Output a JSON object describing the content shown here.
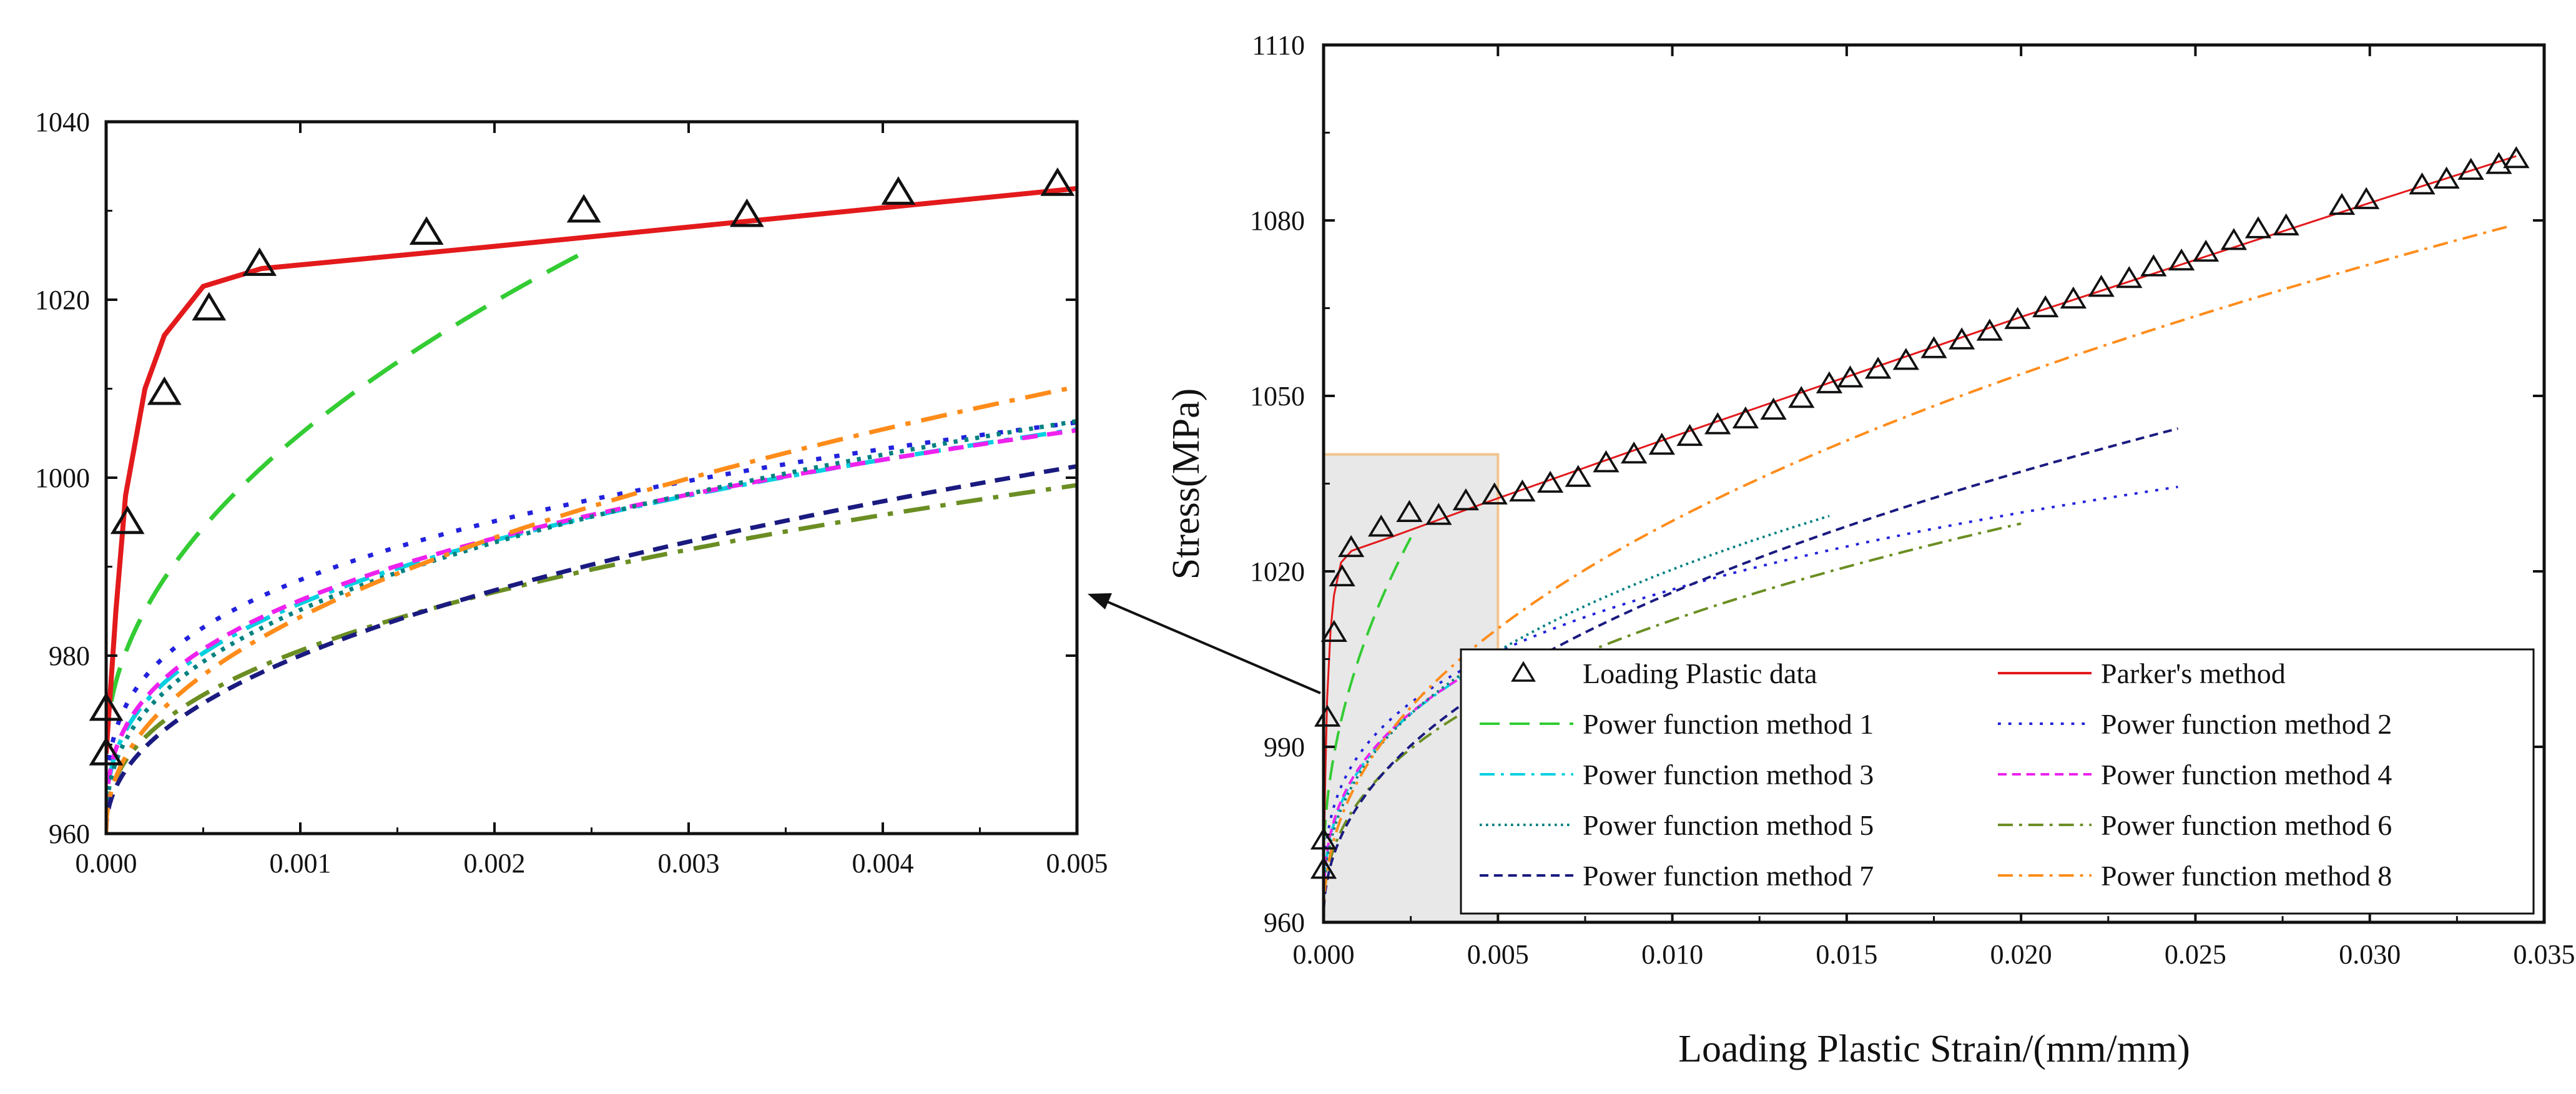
{
  "chart_data": [
    {
      "id": "inset",
      "type": "line",
      "title": "",
      "xlabel": "",
      "ylabel": "",
      "xlim": [
        0.0,
        0.005
      ],
      "ylim": [
        960,
        1040
      ],
      "xticks": [
        0.0,
        0.001,
        0.002,
        0.003,
        0.004,
        0.005
      ],
      "xtick_labels": [
        "0.000",
        "0.001",
        "0.002",
        "0.003",
        "0.004",
        "0.005"
      ],
      "yticks": [
        960,
        980,
        1000,
        1020,
        1040
      ],
      "ytick_labels": [
        "960",
        "980",
        "1000",
        "1020",
        "1040"
      ],
      "scatter_points": [
        [
          0.0,
          969
        ],
        [
          0.0,
          974
        ],
        [
          0.00011,
          995
        ],
        [
          0.0003,
          1009.5
        ],
        [
          0.00053,
          1019
        ],
        [
          0.00079,
          1024
        ],
        [
          0.00165,
          1027.5
        ],
        [
          0.00246,
          1030
        ],
        [
          0.0033,
          1029.5
        ],
        [
          0.00408,
          1032
        ],
        [
          0.0049,
          1033
        ]
      ]
    },
    {
      "id": "main",
      "type": "line",
      "title": "",
      "xlabel": "Loading Plastic Strain/(mm/mm)",
      "ylabel": "Stress(MPa)",
      "xlim": [
        0.0,
        0.035
      ],
      "ylim": [
        960,
        1110
      ],
      "xticks": [
        0.0,
        0.005,
        0.01,
        0.015,
        0.02,
        0.025,
        0.03,
        0.035
      ],
      "xtick_labels": [
        "0.000",
        "0.005",
        "0.010",
        "0.015",
        "0.020",
        "0.025",
        "0.030",
        "0.035"
      ],
      "yticks": [
        960,
        990,
        1020,
        1050,
        1080,
        1110
      ],
      "ytick_labels": [
        "960",
        "990",
        "1020",
        "1050",
        "1080",
        "1110"
      ],
      "zoom_region": {
        "xlim": [
          0.0,
          0.005
        ],
        "ylim": [
          960,
          1040
        ]
      },
      "scatter_points": [
        [
          0.0,
          969
        ],
        [
          0.0,
          974
        ],
        [
          0.00011,
          995
        ],
        [
          0.0003,
          1009.5
        ],
        [
          0.00053,
          1019
        ],
        [
          0.00079,
          1024
        ],
        [
          0.00165,
          1027.5
        ],
        [
          0.00246,
          1030
        ],
        [
          0.0033,
          1029.5
        ],
        [
          0.00408,
          1032
        ],
        [
          0.0049,
          1033
        ],
        [
          0.0057,
          1033.5
        ],
        [
          0.0065,
          1035
        ],
        [
          0.0073,
          1036
        ],
        [
          0.0081,
          1038.5
        ],
        [
          0.0089,
          1040
        ],
        [
          0.0097,
          1041.5
        ],
        [
          0.0105,
          1043
        ],
        [
          0.0113,
          1045
        ],
        [
          0.0121,
          1046
        ],
        [
          0.0129,
          1047.5
        ],
        [
          0.0137,
          1049.5
        ],
        [
          0.0145,
          1052
        ],
        [
          0.0151,
          1053
        ],
        [
          0.0159,
          1054.5
        ],
        [
          0.0167,
          1056
        ],
        [
          0.0175,
          1058
        ],
        [
          0.0183,
          1059.5
        ],
        [
          0.0191,
          1061
        ],
        [
          0.0199,
          1063
        ],
        [
          0.0207,
          1065
        ],
        [
          0.0215,
          1066.5
        ],
        [
          0.0223,
          1068.5
        ],
        [
          0.0231,
          1070
        ],
        [
          0.0238,
          1072
        ],
        [
          0.0246,
          1073
        ],
        [
          0.0253,
          1074.5
        ],
        [
          0.0261,
          1076.5
        ],
        [
          0.0268,
          1078.5
        ],
        [
          0.0276,
          1079
        ],
        [
          0.0292,
          1082.5
        ],
        [
          0.0299,
          1083.5
        ],
        [
          0.0315,
          1086
        ],
        [
          0.0322,
          1087
        ],
        [
          0.0329,
          1088.5
        ],
        [
          0.0337,
          1089.5
        ],
        [
          0.0342,
          1090.5
        ]
      ]
    }
  ],
  "series": [
    {
      "key": "data",
      "name": "Loading Plastic data",
      "color": "#000000",
      "marker": "triangle"
    },
    {
      "key": "parker",
      "name": "Parker's method",
      "color": "#e31a1c",
      "dash": "solid",
      "xmax": 0.0342,
      "knots": [
        [
          0,
          969
        ],
        [
          5e-05,
          985
        ],
        [
          0.0001,
          998
        ],
        [
          0.0002,
          1010
        ],
        [
          0.0003,
          1016
        ],
        [
          0.0005,
          1021.5
        ],
        [
          0.0008,
          1023.5
        ],
        [
          0.002,
          1026
        ],
        [
          0.005,
          1032.5
        ],
        [
          0.01,
          1043
        ],
        [
          0.02,
          1063.5
        ],
        [
          0.03,
          1083
        ],
        [
          0.0342,
          1091
        ]
      ]
    },
    {
      "key": "p1",
      "name": "Power function method 1",
      "color": "#33cc33",
      "dash": "long",
      "xmax": 0.0025,
      "A": 969,
      "B": 1135.42,
      "n": 0.5
    },
    {
      "key": "p2",
      "name": "Power function method 2",
      "color": "#2222dd",
      "dash": "dot",
      "xmax": 0.0245,
      "A": 960,
      "B": 226.5,
      "n": 0.3
    },
    {
      "key": "p3",
      "name": "Power function method 3",
      "color": "#00d0e0",
      "dash": "dashdot",
      "xmax": 0.005,
      "A": 960,
      "B": 290.2,
      "n": 0.35
    },
    {
      "key": "p4",
      "name": "Power function method 4",
      "color": "#ee22ee",
      "dash": "shortdash",
      "xmax": 0.005,
      "A": 960,
      "B": 274.6,
      "n": 0.34
    },
    {
      "key": "p5",
      "name": "Power function method 5",
      "color": "#008080",
      "dash": "finedot",
      "xmax": 0.0145,
      "A": 960,
      "B": 347.1,
      "n": 0.38
    },
    {
      "key": "p6",
      "name": "Power function method 6",
      "color": "#6b8e23",
      "dash": "dashdot",
      "xmax": 0.02,
      "A": 960,
      "B": 326.0,
      "n": 0.4
    },
    {
      "key": "p7",
      "name": "Power function method 7",
      "color": "#1a1a80",
      "dash": "shortdash",
      "xmax": 0.0245,
      "A": 960,
      "B": 448.0,
      "n": 0.45
    },
    {
      "key": "p8",
      "name": "Power function method 8",
      "color": "#ff8c1a",
      "dash": "dashdot",
      "xmax": 0.034,
      "A": 960,
      "B": 545.0,
      "n": 0.45
    }
  ],
  "legend": {
    "placement": "bottom-right of main plot",
    "columns": [
      [
        "Loading Plastic data",
        "Power function method 1",
        "Power function method 3",
        "Power function method 5",
        "Power function method 7"
      ],
      [
        "Parker's method",
        "Power function method 2",
        "Power function method 4",
        "Power function method 6",
        "Power function method 8"
      ]
    ]
  }
}
